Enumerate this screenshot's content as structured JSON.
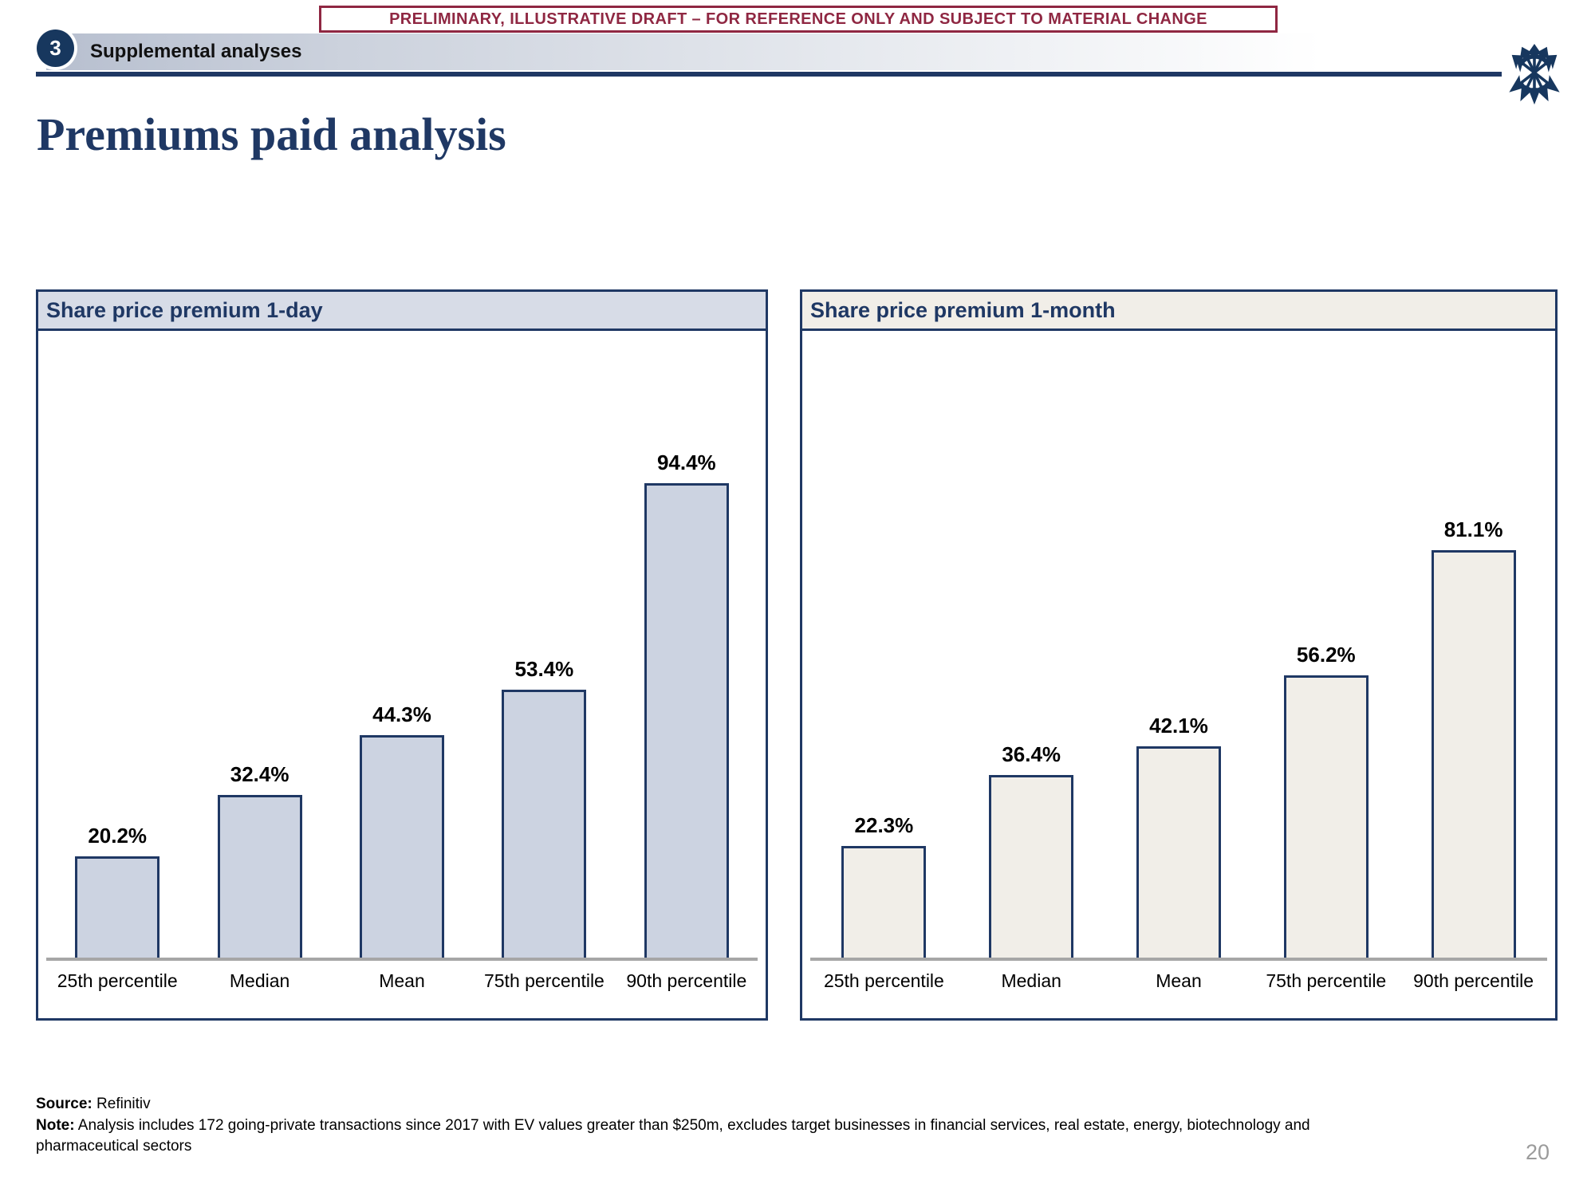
{
  "banner": {
    "text": "PRELIMINARY, ILLUSTRATIVE DRAFT – FOR REFERENCE ONLY AND SUBJECT TO MATERIAL CHANGE"
  },
  "section_tab": {
    "number": "3",
    "label": "Supplemental analyses"
  },
  "page_title": "Premiums paid analysis",
  "logo": {
    "name": "crossed-arrows-starburst"
  },
  "colors": {
    "navy": "#1f3864",
    "maroon": "#8f2742",
    "left_bar_fill": "#ccd3e1",
    "left_header_bg": "#d7dce7",
    "right_bar_fill": "#f1eee8",
    "right_header_bg": "#f1eee8",
    "axis_gray": "#a6a6a6",
    "page_number_gray": "#9b9b9b"
  },
  "chart_data": [
    {
      "type": "bar",
      "title": "Share price premium 1-day",
      "categories": [
        "25th percentile",
        "Median",
        "Mean",
        "75th percentile",
        "90th percentile"
      ],
      "values": [
        20.2,
        32.4,
        44.3,
        53.4,
        94.4
      ],
      "value_labels": [
        "20.2%",
        "32.4%",
        "44.3%",
        "53.4%",
        "94.4%"
      ],
      "xlabel": "",
      "ylabel": "",
      "ylim": [
        0,
        125
      ],
      "grid": false,
      "legend": "none",
      "bar_fill": "#ccd3e1",
      "header_bg": "#d7dce7"
    },
    {
      "type": "bar",
      "title": "Share price premium 1-month",
      "categories": [
        "25th percentile",
        "Median",
        "Mean",
        "75th percentile",
        "90th percentile"
      ],
      "values": [
        22.3,
        36.4,
        42.1,
        56.2,
        81.1
      ],
      "value_labels": [
        "22.3%",
        "36.4%",
        "42.1%",
        "56.2%",
        "81.1%"
      ],
      "xlabel": "",
      "ylabel": "",
      "ylim": [
        0,
        125
      ],
      "grid": false,
      "legend": "none",
      "bar_fill": "#f1eee8",
      "header_bg": "#f1eee8"
    }
  ],
  "footer": {
    "source_label": "Source:",
    "source_text": " Refinitiv",
    "note_label": "Note:",
    "note_text": " Analysis includes 172 going-private transactions since 2017 with EV values greater than $250m, excludes target businesses in financial services, real estate, energy, biotechnology and pharmaceutical sectors",
    "page_number": "20"
  }
}
